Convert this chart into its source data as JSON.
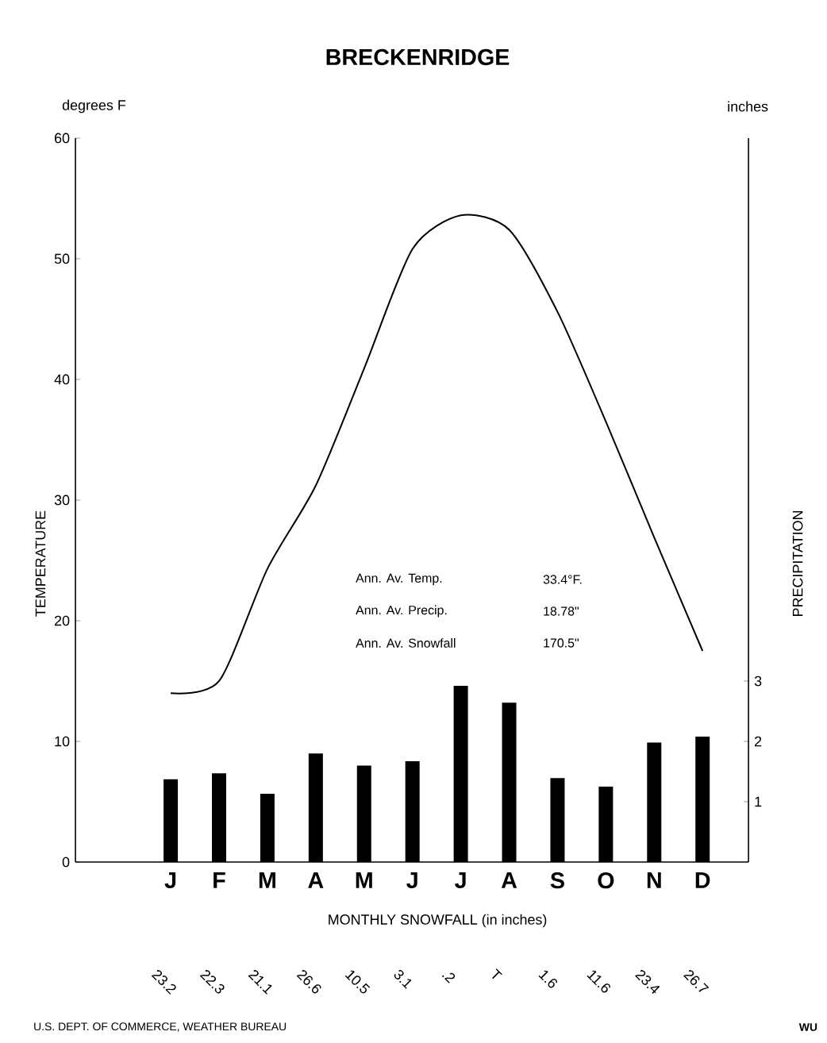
{
  "chart_data": {
    "type": "line",
    "title": "BRECKENRIDGE",
    "categories": [
      "J",
      "F",
      "M",
      "A",
      "M",
      "J",
      "J",
      "A",
      "S",
      "O",
      "N",
      "D"
    ],
    "series": [
      {
        "name": null,
        "color": "#000000",
        "values": [
          14.0,
          15.0,
          24.3,
          31.2,
          40.9,
          50.8,
          53.6,
          52.4,
          45.6,
          36.5,
          26.9,
          17.5
        ]
      },
      {
        "name": null,
        "type": "bar",
        "axis": "y2",
        "color": "#000000",
        "values": [
          1.37,
          1.47,
          1.13,
          1.8,
          1.6,
          1.67,
          2.92,
          2.64,
          1.39,
          1.25,
          1.98,
          2.08
        ]
      }
    ],
    "ylabel": "TEMPERATURE",
    "y2label": "PRECIPITATION",
    "xlabel": "MONTHLY SNOWFALL (in inches)",
    "ylim": [
      0,
      60
    ],
    "yticks": [
      0,
      10,
      20,
      30,
      40,
      50,
      60
    ],
    "y2lim": [
      0,
      12
    ],
    "y2ticks": [
      1,
      2,
      3
    ],
    "grid": false,
    "line_style": "solid",
    "marker": "none",
    "annotations": [
      "Ann. Av. Temp.",
      "33.4°F.",
      "Ann. Av. Precip.",
      "18.78\"",
      "Ann. Av. Snowfall",
      "170.5\"",
      "23.2",
      "22.3",
      "21.1",
      "26.6",
      "10.5",
      "3.1",
      ".2",
      "T",
      "1.6",
      "11.6",
      "23.4",
      "26.7",
      "degrees F",
      "inches",
      "U.S. DEPT. OF COMMERCE, WEATHER BUREAU",
      "WU"
    ]
  }
}
